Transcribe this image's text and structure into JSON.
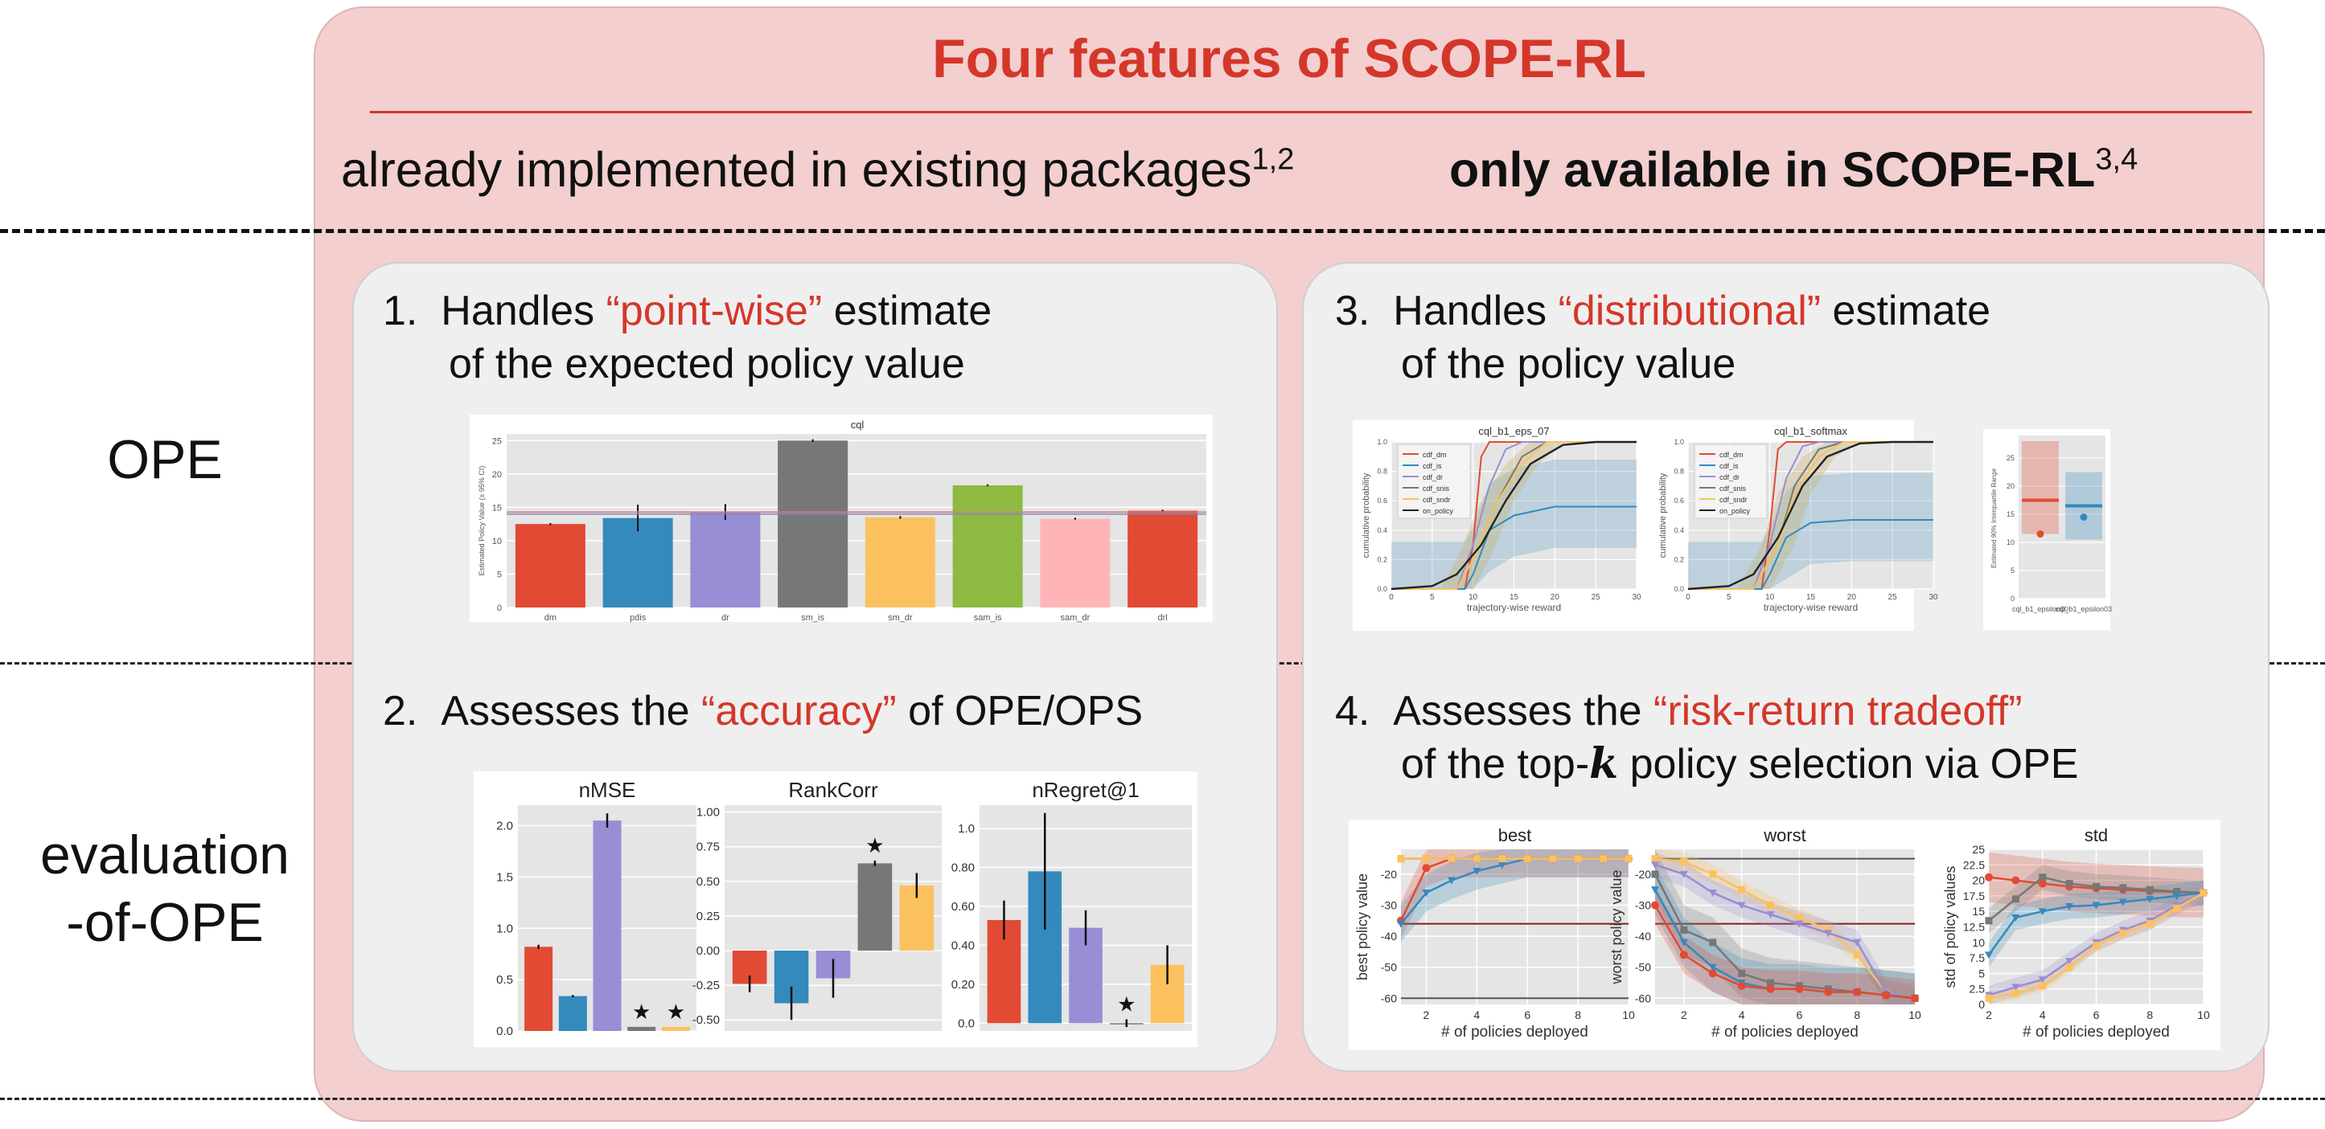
{
  "title": "Four features of SCOPE-RL",
  "headers": {
    "left": "already implemented in existing packages",
    "left_sup": "1,2",
    "right": "only available in SCOPE-RL",
    "right_sup": "3,4"
  },
  "rows": {
    "ope": "OPE",
    "eval_line1": "evaluation",
    "eval_line2": "-of-OPE"
  },
  "features": {
    "f1": {
      "num": "1.",
      "pre": "Handles ",
      "hl": "“point-wise”",
      "post": " estimate",
      "line2": "of the expected policy value"
    },
    "f2": {
      "num": "2.",
      "pre": "Assesses the ",
      "hl": "“accuracy”",
      "post": " of OPE/OPS"
    },
    "f3": {
      "num": "3.",
      "pre": "Handles ",
      "hl": "“distributional”",
      "post": " estimate",
      "line2": "of the policy value"
    },
    "f4": {
      "num": "4.",
      "pre": "Assesses the ",
      "hl": "“risk-return tradeoff”",
      "line2a": "of the top-",
      "line2k": "k",
      "line2b": " policy selection via OPE"
    }
  },
  "colors": {
    "red": "#d4372a",
    "panel": "#f3cfcf",
    "feature_bg": "#efefef"
  },
  "chart_data": [
    {
      "id": "cql_bar",
      "type": "bar",
      "title": "cql",
      "ylabel": "Estimated Policy Value (± 95% CI)",
      "categories": [
        "dm",
        "pdis",
        "dr",
        "sm_is",
        "sm_dr",
        "sam_is",
        "sam_dr",
        "drl"
      ],
      "values": [
        12.5,
        13.4,
        14.3,
        25.0,
        13.5,
        18.3,
        13.3,
        14.5
      ],
      "errors": [
        0.15,
        2.0,
        1.2,
        0.2,
        0.2,
        0.15,
        0.15,
        0.15
      ],
      "colors": [
        "#e24a33",
        "#348abd",
        "#988ed5",
        "#777777",
        "#fbc15e",
        "#8eba42",
        "#ffb5b8",
        "#e24a33"
      ],
      "ylim": [
        0,
        26
      ],
      "yticks": [
        0,
        5,
        10,
        15,
        20,
        25
      ],
      "hlines": [
        14.0,
        14.3
      ]
    },
    {
      "id": "cdf_eps07",
      "type": "line",
      "title": "cql_b1_eps_07",
      "xlabel": "trajectory-wise reward",
      "ylabel": "cumulative probability",
      "xlim": [
        0,
        30
      ],
      "ylim": [
        0,
        1
      ],
      "xticks": [
        0,
        5,
        10,
        15,
        20,
        25,
        30
      ],
      "yticks": [
        0.0,
        0.2,
        0.4,
        0.6,
        0.8,
        1.0
      ],
      "legend": [
        "cdf_dm",
        "cdf_is",
        "cdf_dr",
        "cdf_snis",
        "cdf_sndr",
        "on_policy"
      ],
      "series": [
        {
          "name": "cdf_dm",
          "color": "#e24a33",
          "points": [
            [
              0,
              0
            ],
            [
              9,
              0
            ],
            [
              10,
              0.3
            ],
            [
              11,
              0.9
            ],
            [
              12,
              1
            ],
            [
              30,
              1
            ]
          ]
        },
        {
          "name": "cdf_is",
          "color": "#348abd",
          "points": [
            [
              0,
              0
            ],
            [
              9,
              0
            ],
            [
              10,
              0.1
            ],
            [
              12,
              0.4
            ],
            [
              15,
              0.5
            ],
            [
              20,
              0.56
            ],
            [
              30,
              0.56
            ]
          ]
        },
        {
          "name": "cdf_dr",
          "color": "#988ed5",
          "points": [
            [
              0,
              0
            ],
            [
              8,
              0
            ],
            [
              10,
              0.3
            ],
            [
              12,
              0.7
            ],
            [
              14,
              0.95
            ],
            [
              16,
              1
            ],
            [
              30,
              1
            ]
          ]
        },
        {
          "name": "cdf_snis",
          "color": "#777777",
          "points": [
            [
              0,
              0
            ],
            [
              8,
              0
            ],
            [
              10,
              0.2
            ],
            [
              13,
              0.6
            ],
            [
              16,
              0.9
            ],
            [
              19,
              1
            ],
            [
              30,
              1
            ]
          ]
        },
        {
          "name": "cdf_sndr",
          "color": "#fbc15e",
          "points": [
            [
              0,
              0
            ],
            [
              8,
              0
            ],
            [
              10,
              0.2
            ],
            [
              13,
              0.6
            ],
            [
              16,
              0.85
            ],
            [
              19,
              1
            ],
            [
              30,
              1
            ]
          ]
        },
        {
          "name": "on_policy",
          "color": "#222222",
          "points": [
            [
              0,
              0
            ],
            [
              5,
              0.02
            ],
            [
              8,
              0.1
            ],
            [
              11,
              0.3
            ],
            [
              14,
              0.6
            ],
            [
              17,
              0.85
            ],
            [
              21,
              0.98
            ],
            [
              25,
              1
            ],
            [
              30,
              1
            ]
          ]
        }
      ]
    },
    {
      "id": "cdf_softmax",
      "type": "line",
      "title": "cql_b1_softmax",
      "xlabel": "trajectory-wise reward",
      "ylabel": "cumulative probability",
      "xlim": [
        0,
        30
      ],
      "ylim": [
        0,
        1
      ],
      "xticks": [
        0,
        5,
        10,
        15,
        20,
        25,
        30
      ],
      "yticks": [
        0.0,
        0.2,
        0.4,
        0.6,
        0.8,
        1.0
      ],
      "legend": [
        "cdf_dm",
        "cdf_is",
        "cdf_dr",
        "cdf_snis",
        "cdf_sndr",
        "on_policy"
      ],
      "series": [
        {
          "name": "cdf_dm",
          "color": "#e24a33",
          "points": [
            [
              0,
              0
            ],
            [
              9,
              0
            ],
            [
              10,
              0.4
            ],
            [
              11,
              0.95
            ],
            [
              12,
              1
            ],
            [
              30,
              1
            ]
          ]
        },
        {
          "name": "cdf_is",
          "color": "#348abd",
          "points": [
            [
              0,
              0
            ],
            [
              9,
              0
            ],
            [
              10,
              0.1
            ],
            [
              12,
              0.35
            ],
            [
              15,
              0.45
            ],
            [
              20,
              0.47
            ],
            [
              30,
              0.47
            ]
          ]
        },
        {
          "name": "cdf_dr",
          "color": "#988ed5",
          "points": [
            [
              0,
              0
            ],
            [
              8,
              0
            ],
            [
              10,
              0.3
            ],
            [
              12,
              0.75
            ],
            [
              14,
              0.97
            ],
            [
              16,
              1
            ],
            [
              30,
              1
            ]
          ]
        },
        {
          "name": "cdf_snis",
          "color": "#777777",
          "points": [
            [
              0,
              0
            ],
            [
              8,
              0
            ],
            [
              11,
              0.3
            ],
            [
              13,
              0.7
            ],
            [
              16,
              0.95
            ],
            [
              19,
              1
            ],
            [
              30,
              1
            ]
          ]
        },
        {
          "name": "cdf_sndr",
          "color": "#fbc15e",
          "points": [
            [
              0,
              0
            ],
            [
              8,
              0
            ],
            [
              11,
              0.3
            ],
            [
              13,
              0.65
            ],
            [
              16,
              0.9
            ],
            [
              19,
              1
            ],
            [
              30,
              1
            ]
          ]
        },
        {
          "name": "on_policy",
          "color": "#222222",
          "points": [
            [
              0,
              0
            ],
            [
              5,
              0.02
            ],
            [
              8,
              0.1
            ],
            [
              11,
              0.35
            ],
            [
              14,
              0.7
            ],
            [
              17,
              0.9
            ],
            [
              21,
              0.99
            ],
            [
              25,
              1
            ],
            [
              30,
              1
            ]
          ]
        }
      ]
    },
    {
      "id": "iqr",
      "type": "bar",
      "ylabel": "Estimated 90% Interquartile Range",
      "categories": [
        "cql_b1_epsilon00",
        "cql_b1_epsilon03"
      ],
      "lower": [
        11.5,
        10.5
      ],
      "upper": [
        28.0,
        22.5
      ],
      "median": [
        17.5,
        16.5
      ],
      "point": [
        11.5,
        14.5
      ],
      "colors": [
        "#e24a33",
        "#348abd"
      ],
      "ylim": [
        0,
        29
      ],
      "yticks": [
        0,
        5,
        10,
        15,
        20,
        25
      ]
    },
    {
      "id": "nmse",
      "type": "bar",
      "title": "nMSE",
      "ylim": [
        0,
        2.2
      ],
      "categories": [
        "1",
        "2",
        "3",
        "4",
        "5"
      ],
      "values": [
        0.82,
        0.34,
        2.05,
        0.04,
        0.04
      ],
      "errors": [
        0.02,
        0.01,
        0.07,
        0.0,
        0.0
      ],
      "yticks": [
        0.0,
        0.5,
        1.0,
        1.5,
        2.0
      ],
      "stars": [
        4,
        5
      ],
      "colors": [
        "#e24a33",
        "#348abd",
        "#988ed5",
        "#777777",
        "#fbc15e"
      ]
    },
    {
      "id": "rankcorr",
      "type": "bar",
      "title": "RankCorr",
      "ylim": [
        -0.58,
        1.05
      ],
      "categories": [
        "1",
        "2",
        "3",
        "4",
        "5"
      ],
      "values": [
        -0.24,
        -0.38,
        -0.2,
        0.63,
        0.47
      ],
      "errors": [
        0.06,
        0.12,
        0.14,
        0.02,
        0.09
      ],
      "yticks": [
        -0.5,
        -0.25,
        0.0,
        0.25,
        0.5,
        0.75,
        1.0
      ],
      "stars": [
        4
      ],
      "colors": [
        "#e24a33",
        "#348abd",
        "#988ed5",
        "#777777",
        "#fbc15e"
      ]
    },
    {
      "id": "nregret",
      "type": "bar",
      "title": "nRegret@1",
      "ylim": [
        -0.04,
        1.12
      ],
      "categories": [
        "1",
        "2",
        "3",
        "4",
        "5"
      ],
      "values": [
        0.53,
        0.78,
        0.49,
        0.0,
        0.3
      ],
      "errors": [
        0.1,
        0.3,
        0.09,
        0.02,
        0.1
      ],
      "yticks": [
        0.0,
        0.2,
        0.4,
        0.6,
        0.8,
        1.0
      ],
      "stars": [
        4
      ],
      "colors": [
        "#e24a33",
        "#348abd",
        "#988ed5",
        "#777777",
        "#fbc15e"
      ]
    },
    {
      "id": "best",
      "type": "line",
      "title": "best",
      "xlabel": "# of policies deployed",
      "ylabel": "best policy value",
      "xlim": [
        1,
        10
      ],
      "ylim": [
        -62,
        -12
      ],
      "xticks": [
        2,
        4,
        6,
        8,
        10
      ],
      "yticks": [
        -20,
        -30,
        -40,
        -50,
        -60
      ],
      "hlines": [
        {
          "y": -36,
          "color": "#8b1a1a"
        },
        {
          "y": -60,
          "color": "#555555"
        }
      ],
      "series": [
        {
          "name": "red",
          "color": "#e24a33",
          "marker": "circle",
          "band": 6,
          "values": [
            -35,
            -18,
            -15,
            -15,
            -15,
            -15,
            -15,
            -15,
            -15,
            -15
          ]
        },
        {
          "name": "blue",
          "color": "#348abd",
          "marker": "tri",
          "band": 6,
          "values": [
            -36,
            -26,
            -22,
            -19,
            -17,
            -15,
            -15,
            -15,
            -15,
            -15
          ]
        },
        {
          "name": "purple",
          "color": "#988ed5",
          "marker": "square",
          "band": 0,
          "values": [
            -15,
            -15,
            -15,
            -15,
            -15,
            -15,
            -15,
            -15,
            -15,
            -15
          ]
        },
        {
          "name": "gray",
          "color": "#777777",
          "marker": "square",
          "band": 0,
          "values": [
            -15,
            -15,
            -15,
            -15,
            -15,
            -15,
            -15,
            -15,
            -15,
            -15
          ]
        },
        {
          "name": "yellow",
          "color": "#fbc15e",
          "marker": "square",
          "band": 0,
          "values": [
            -15,
            -15,
            -15,
            -15,
            -15,
            -15,
            -15,
            -15,
            -15,
            -15
          ]
        }
      ]
    },
    {
      "id": "worst",
      "type": "line",
      "title": "worst",
      "xlabel": "# of policies deployed",
      "ylabel": "worst policy value",
      "xlim": [
        1,
        10
      ],
      "ylim": [
        -62,
        -12
      ],
      "xticks": [
        2,
        4,
        6,
        8,
        10
      ],
      "yticks": [
        -20,
        -30,
        -40,
        -50,
        -60
      ],
      "hlines": [
        {
          "y": -15,
          "color": "#555555"
        },
        {
          "y": -36,
          "color": "#8b1a1a"
        }
      ],
      "series": [
        {
          "name": "yellow",
          "color": "#fbc15e",
          "marker": "square",
          "band": 3,
          "values": [
            -15,
            -16,
            -20,
            -25,
            -30,
            -34,
            -38,
            -46,
            -58,
            -60
          ]
        },
        {
          "name": "purple",
          "color": "#988ed5",
          "marker": "tri",
          "band": 4,
          "values": [
            -17,
            -20,
            -26,
            -30,
            -33,
            -36,
            -39,
            -42,
            -58,
            -60
          ]
        },
        {
          "name": "gray",
          "color": "#777777",
          "marker": "square",
          "band": 8,
          "values": [
            -20,
            -38,
            -42,
            -52,
            -55,
            -56,
            -57,
            -58,
            -59,
            -60
          ]
        },
        {
          "name": "blue",
          "color": "#348abd",
          "marker": "tri",
          "band": 8,
          "values": [
            -25,
            -42,
            -50,
            -55,
            -57,
            -57,
            -58,
            -58,
            -59,
            -60
          ]
        },
        {
          "name": "red",
          "color": "#e24a33",
          "marker": "circle",
          "band": 6,
          "values": [
            -30,
            -46,
            -52,
            -56,
            -57,
            -57,
            -58,
            -58,
            -59,
            -60
          ]
        }
      ]
    },
    {
      "id": "std",
      "type": "line",
      "title": "std",
      "xlabel": "# of policies deployed",
      "ylabel": "std of policy values",
      "xlim": [
        2,
        10
      ],
      "ylim": [
        0,
        25
      ],
      "xticks": [
        2,
        4,
        6,
        8,
        10
      ],
      "yticks": [
        0,
        2.5,
        5,
        7.5,
        10,
        12.5,
        15,
        17.5,
        20,
        22.5,
        25
      ],
      "series": [
        {
          "name": "red",
          "color": "#e24a33",
          "marker": "circle",
          "band": 4,
          "values": [
            20.5,
            20,
            19.5,
            19,
            18.7,
            18.5,
            18.3,
            18.1,
            18
          ]
        },
        {
          "name": "gray",
          "color": "#777777",
          "marker": "square",
          "band": 2,
          "values": [
            13.5,
            17,
            20.5,
            19.5,
            19,
            18.8,
            18.5,
            18.2,
            18
          ]
        },
        {
          "name": "blue",
          "color": "#348abd",
          "marker": "tri",
          "band": 2,
          "values": [
            8,
            14,
            15,
            15.8,
            16,
            16.5,
            17,
            17.5,
            18
          ]
        },
        {
          "name": "purple",
          "color": "#988ed5",
          "marker": "tri",
          "band": 1.5,
          "values": [
            1.5,
            2.8,
            4,
            7,
            10,
            12,
            13.5,
            16,
            18
          ]
        },
        {
          "name": "yellow",
          "color": "#fbc15e",
          "marker": "square",
          "band": 1,
          "values": [
            1,
            1.8,
            3,
            6,
            9.5,
            11.5,
            13,
            15.5,
            18
          ]
        }
      ]
    }
  ]
}
